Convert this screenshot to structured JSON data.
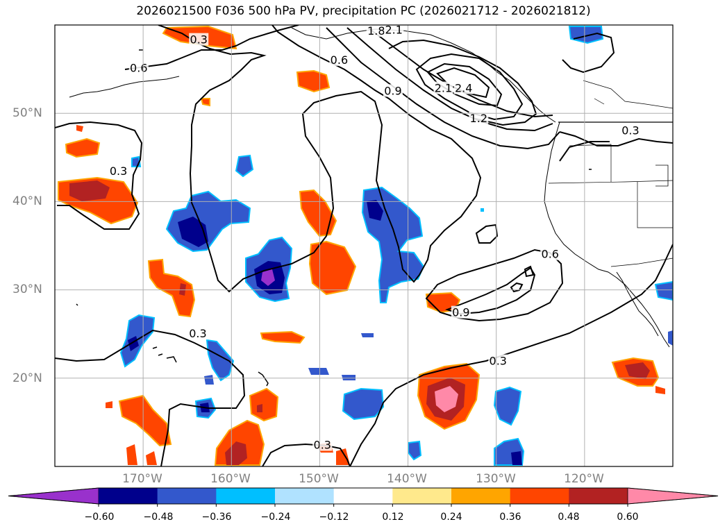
{
  "title": "2026021500 F036 500 hPa PV, precipitation PC (2026021712 - 2026021812)",
  "map": {
    "projection": "plate-carree",
    "lon_range": [
      -180,
      -110
    ],
    "lat_range": [
      10,
      60
    ],
    "lat_ticks": [
      {
        "value": 50,
        "label": "50°N"
      },
      {
        "value": 40,
        "label": "40°N"
      },
      {
        "value": 30,
        "label": "30°N"
      },
      {
        "value": 20,
        "label": "20°N"
      }
    ],
    "lon_ticks": [
      {
        "value": -170,
        "label": "170°W"
      },
      {
        "value": -160,
        "label": "160°W"
      },
      {
        "value": -150,
        "label": "150°W"
      },
      {
        "value": -140,
        "label": "140°W"
      },
      {
        "value": -130,
        "label": "130°W"
      },
      {
        "value": -120,
        "label": "120°W"
      }
    ],
    "contour_labels": [
      {
        "text": "0.3",
        "lon": -163.7,
        "lat": 58.3
      },
      {
        "text": "0.6",
        "lon": -170.5,
        "lat": 55.1
      },
      {
        "text": "0.6",
        "lon": -147.8,
        "lat": 56.0
      },
      {
        "text": "1.8",
        "lon": -143.6,
        "lat": 59.3
      },
      {
        "text": "2.1",
        "lon": -141.6,
        "lat": 59.4
      },
      {
        "text": "0.9",
        "lon": -141.7,
        "lat": 52.5
      },
      {
        "text": "2.1",
        "lon": -136.0,
        "lat": 52.8
      },
      {
        "text": "2.4",
        "lon": -133.7,
        "lat": 52.8
      },
      {
        "text": "1.2",
        "lon": -132.0,
        "lat": 49.4
      },
      {
        "text": "0.3",
        "lon": -114.8,
        "lat": 48.0
      },
      {
        "text": "0.3",
        "lon": -172.8,
        "lat": 43.4
      },
      {
        "text": "0.6",
        "lon": -123.9,
        "lat": 34.0
      },
      {
        "text": "0.9",
        "lon": -134.0,
        "lat": 27.4
      },
      {
        "text": "0.3",
        "lon": -163.8,
        "lat": 25.0
      },
      {
        "text": "0.3",
        "lon": -129.8,
        "lat": 21.9
      },
      {
        "text": "0.3",
        "lon": -149.7,
        "lat": 12.4
      }
    ]
  },
  "colorbar": {
    "colors": [
      "#9931cc",
      "#00008c",
      "#3358cc",
      "#00bfff",
      "#b0e2ff",
      "#ffffff",
      "#ffe98c",
      "#ffa500",
      "#ff4500",
      "#b22222",
      "#ff89a8"
    ],
    "labels": [
      "−0.60",
      "−0.48",
      "−0.36",
      "−0.24",
      "−0.12",
      "0.12",
      "0.24",
      "0.36",
      "0.48",
      "0.60"
    ]
  },
  "legend_colors": {
    "frame": "#000000",
    "grid": "#b0b0b0",
    "tick_label": "#808080"
  }
}
